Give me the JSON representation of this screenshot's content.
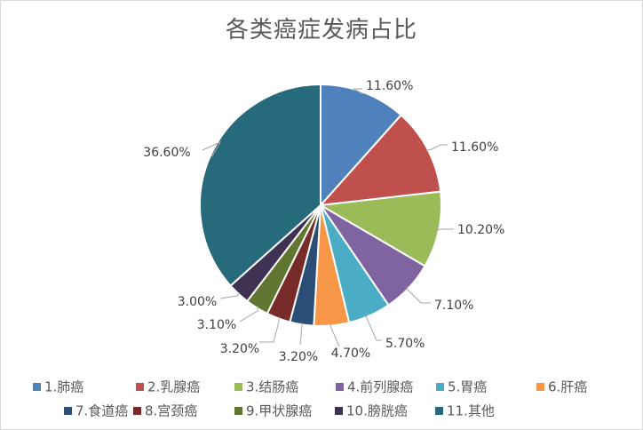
{
  "chart_data": {
    "type": "pie",
    "title": "各类癌症发病占比",
    "legend_position": "bottom",
    "categories": [
      "1.肺癌",
      "2.乳腺癌",
      "3.结肠癌",
      "4.前列腺癌",
      "5.胃癌",
      "6.肝癌",
      "7.食道癌",
      "8.宫颈癌",
      "9.甲状腺癌",
      "10.膀胱癌",
      "11.其他"
    ],
    "values": [
      11.6,
      11.6,
      10.2,
      7.1,
      5.7,
      4.7,
      3.2,
      3.2,
      3.1,
      3.0,
      36.6
    ],
    "value_labels": [
      "11.60%",
      "11.60%",
      "10.20%",
      "7.10%",
      "5.70%",
      "4.70%",
      "3.20%",
      "3.20%",
      "3.10%",
      "3.00%",
      "36.60%"
    ],
    "colors": [
      "#4f81bd",
      "#c0504d",
      "#9bbb59",
      "#8064a2",
      "#4bacc6",
      "#f79646",
      "#2c4d75",
      "#772c2a",
      "#5f7530",
      "#3f3151",
      "#276a7c"
    ]
  }
}
